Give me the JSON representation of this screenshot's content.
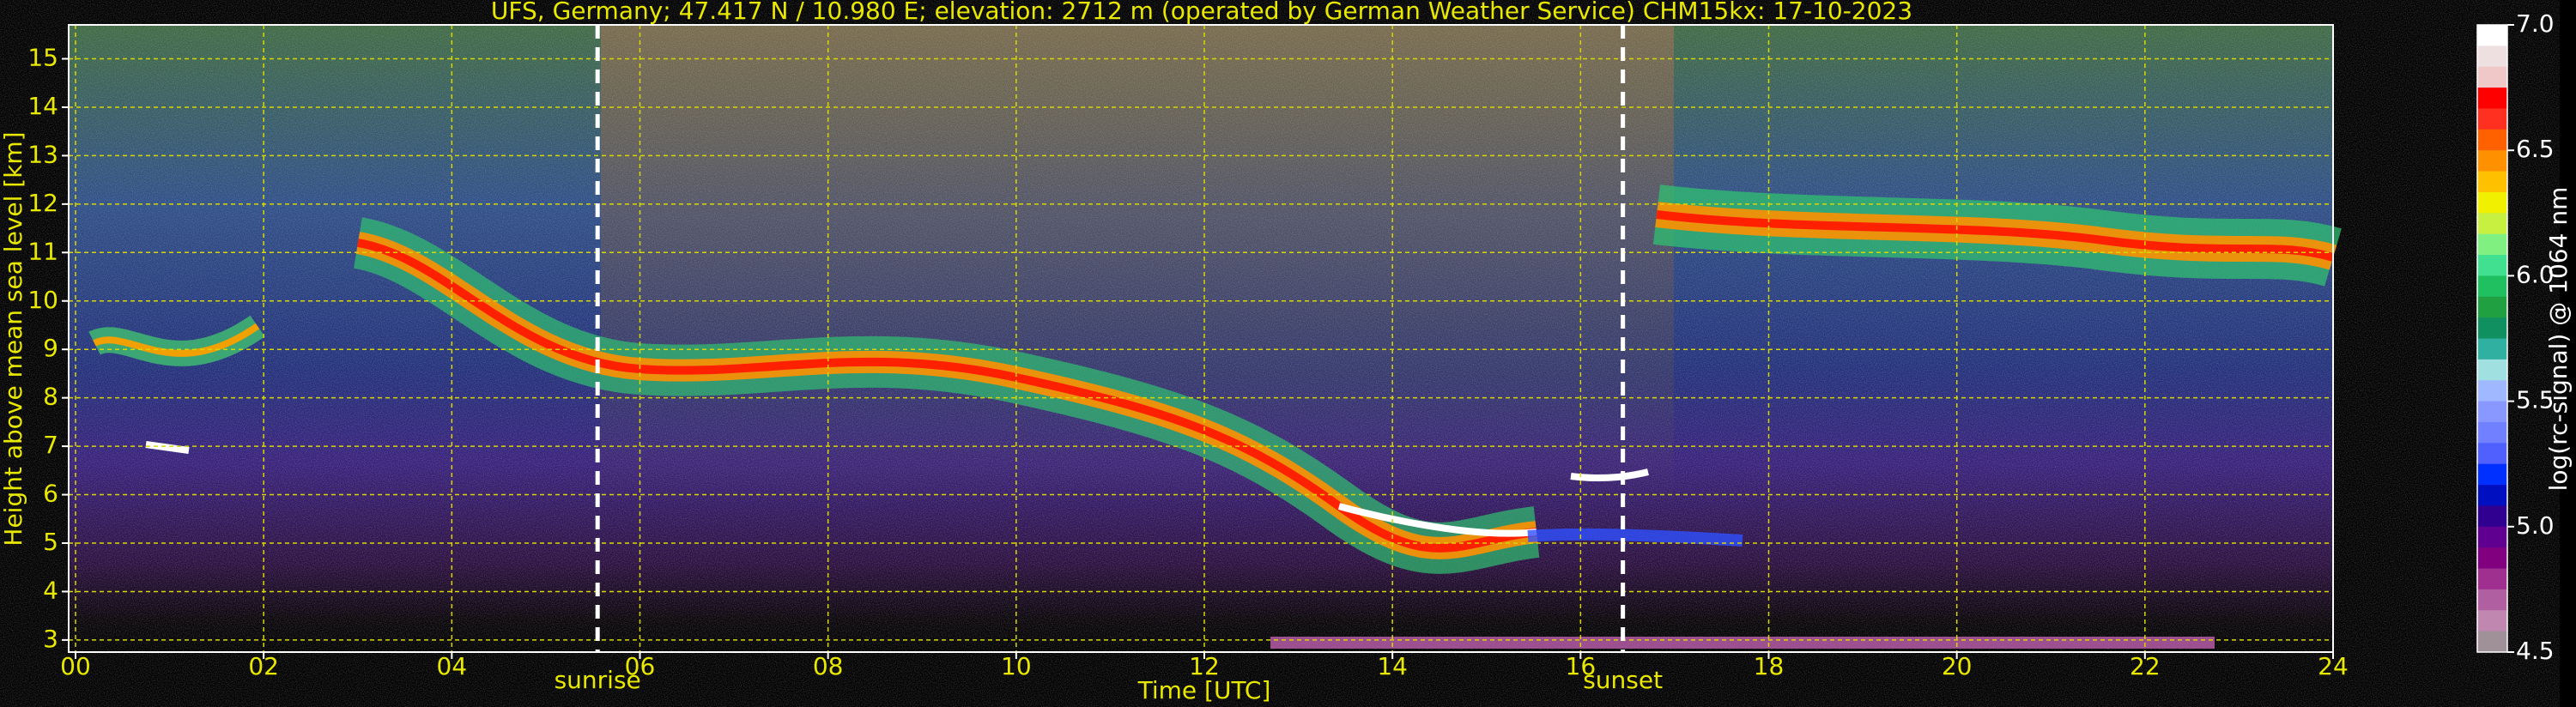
{
  "chart_data": {
    "type": "heatmap",
    "title": "UFS, Germany; 47.417 N / 10.980 E; elevation: 2712 m  (operated by German Weather Service)    CHM15kx: 17-10-2023",
    "x_label": "Time [UTC]",
    "y_label": "Height above mean sea level [km]",
    "colorbar_label": "log(rc-signal) @ 1064 nm",
    "xlim": [
      0,
      24
    ],
    "xticks": [
      {
        "value": 0,
        "label": "00"
      },
      {
        "value": 2,
        "label": "02"
      },
      {
        "value": 4,
        "label": "04"
      },
      {
        "value": 6,
        "label": "06"
      },
      {
        "value": 8,
        "label": "08"
      },
      10,
      12,
      14,
      16,
      18,
      20,
      22,
      24
    ],
    "ylim": [
      2.75,
      15.7
    ],
    "yticks": [
      3,
      4,
      5,
      6,
      7,
      8,
      9,
      10,
      11,
      12,
      13,
      14,
      15
    ],
    "grid": true,
    "grid_color": "#d8d800",
    "clim": [
      4.5,
      7.0
    ],
    "cticks": [
      {
        "value": 7.0,
        "label": "7.0"
      },
      6.5,
      {
        "value": 6.0,
        "label": "6.0"
      },
      5.5,
      {
        "value": 5.0,
        "label": "5.0"
      },
      4.5
    ],
    "colorscale": [
      "#ffffff",
      "#eee0e0",
      "#f0c8c8",
      "#ff0000",
      "#ff3020",
      "#ff6000",
      "#ff9000",
      "#ffc000",
      "#f0f000",
      "#c8f040",
      "#80f080",
      "#40e090",
      "#20c060",
      "#20a040",
      "#109060",
      "#30b0a0",
      "#a0e0e0",
      "#a0b8ff",
      "#8898ff",
      "#7080ff",
      "#5060ff",
      "#0030ff",
      "#0010c0",
      "#300090",
      "#600090",
      "#800080",
      "#a03090",
      "#b060a0",
      "#c088b0",
      "#a09098"
    ],
    "annotations": [
      {
        "text": "sunrise",
        "x": 5.55
      },
      {
        "text": "sunset",
        "x": 16.45
      }
    ]
  }
}
